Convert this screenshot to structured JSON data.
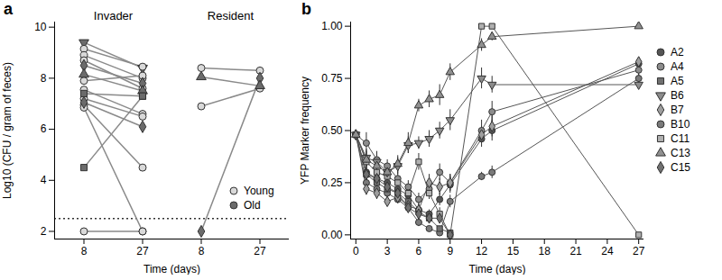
{
  "chart_data": [
    {
      "type": "line",
      "panel": "a",
      "x": [
        8,
        27
      ],
      "xlabel": "Time (days)",
      "ylabel": "Log10 (CFU / gram of feces)",
      "ylim": [
        1.7,
        10.2
      ],
      "yticks": [
        2,
        4,
        6,
        8,
        10
      ],
      "threshold": 2.5,
      "legend": "bottom-right",
      "ages": [
        {
          "name": "Young",
          "color": "#d9d9d9"
        },
        {
          "name": "Old",
          "color": "#6b6b6b"
        }
      ],
      "groups": [
        {
          "name": "Invader",
          "series": [
            {
              "age": "Old",
              "marker": "triangle-down",
              "values": [
                9.4,
                8.4
              ]
            },
            {
              "age": "Young",
              "marker": "circle",
              "values": [
                9.15,
                8.45
              ]
            },
            {
              "age": "Young",
              "marker": "circle",
              "values": [
                8.9,
                8.0
              ]
            },
            {
              "age": "Young",
              "marker": "circle",
              "values": [
                8.7,
                7.6
              ]
            },
            {
              "age": "Old",
              "marker": "diamond",
              "values": [
                8.5,
                7.8
              ]
            },
            {
              "age": "Old",
              "marker": "triangle",
              "values": [
                8.15,
                7.5
              ]
            },
            {
              "age": "Young",
              "marker": "circle",
              "values": [
                7.9,
                8.1
              ]
            },
            {
              "age": "Young",
              "marker": "circle",
              "values": [
                7.55,
                6.6
              ]
            },
            {
              "age": "Old",
              "marker": "square",
              "values": [
                7.4,
                7.3
              ]
            },
            {
              "age": "Young",
              "marker": "circle",
              "values": [
                7.2,
                6.5
              ]
            },
            {
              "age": "Old",
              "marker": "diamond",
              "values": [
                7.05,
                6.1
              ]
            },
            {
              "age": "Young",
              "marker": "circle",
              "values": [
                6.95,
                4.5
              ]
            },
            {
              "age": "Young",
              "marker": "circle",
              "values": [
                6.85,
                2.0
              ]
            },
            {
              "age": "Old",
              "marker": "square",
              "values": [
                4.5,
                7.3
              ]
            },
            {
              "age": "Young",
              "marker": "circle",
              "values": [
                2.0,
                2.0
              ]
            }
          ]
        },
        {
          "name": "Resident",
          "series": [
            {
              "age": "Young",
              "marker": "circle",
              "values": [
                8.4,
                8.3
              ]
            },
            {
              "age": "Old",
              "marker": "triangle",
              "values": [
                8.05,
                7.7
              ]
            },
            {
              "age": "Young",
              "marker": "circle",
              "values": [
                6.9,
                7.6
              ]
            },
            {
              "age": "Old",
              "marker": "diamond",
              "values": [
                2.0,
                8.0
              ]
            }
          ]
        }
      ]
    },
    {
      "type": "line",
      "panel": "b",
      "xlabel": "Time (days)",
      "ylabel": "YFP Marker frequency",
      "x": [
        0,
        1,
        2,
        3,
        4,
        5,
        6,
        7,
        8,
        9,
        12,
        13,
        27
      ],
      "xlim": [
        -0.5,
        27.5
      ],
      "xticks": [
        0,
        3,
        6,
        9,
        12,
        15,
        18,
        21,
        24,
        27
      ],
      "ylim": [
        -0.02,
        1.02
      ],
      "yticks": [
        {
          "value": 0,
          "label": "0.00"
        },
        {
          "value": 0.25,
          "label": "0.25"
        },
        {
          "value": 0.5,
          "label": "0.50"
        },
        {
          "value": 0.75,
          "label": "0.75"
        },
        {
          "value": 1,
          "label": "1.00"
        }
      ],
      "legend": "right",
      "series": [
        {
          "name": "A2",
          "color": "#555555",
          "marker": "circle",
          "values": [
            0.48,
            0.3,
            0.27,
            0.25,
            0.22,
            0.19,
            0.12,
            0.1,
            0.17,
            0.24,
            0.46,
            0.5,
            0.82
          ],
          "errors": [
            0.02,
            0.04,
            0.03,
            0.03,
            0.03,
            0.03,
            0.03,
            0.02,
            0.03,
            0.04,
            0.04,
            0.05,
            0.03
          ]
        },
        {
          "name": "A4",
          "color": "#8c8c8c",
          "marker": "circle",
          "values": [
            0.48,
            0.44,
            0.36,
            0.33,
            0.27,
            0.23,
            0.17,
            0.22,
            0.3,
            0.25,
            0.5,
            0.59,
            0.79
          ],
          "errors": [
            0.02,
            0.05,
            0.04,
            0.03,
            0.03,
            0.03,
            0.03,
            0.03,
            0.04,
            0.04,
            0.05,
            0.05,
            0.03
          ]
        },
        {
          "name": "A5",
          "color": "#707070",
          "marker": "square",
          "values": [
            0.48,
            0.29,
            0.25,
            0.22,
            0.2,
            0.16,
            0.11,
            0.08,
            0.03,
            0.01,
            null,
            null,
            null
          ],
          "errors": [
            0.02,
            0.03,
            0.03,
            0.03,
            0.03,
            0.02,
            0.02,
            0.02,
            0.01,
            0.01,
            null,
            null,
            null
          ]
        },
        {
          "name": "B6",
          "color": "#8c8c8c",
          "marker": "triangle-down",
          "values": [
            0.48,
            0.37,
            0.35,
            0.3,
            0.33,
            0.43,
            0.44,
            0.46,
            0.5,
            0.55,
            0.75,
            0.72,
            0.72
          ],
          "errors": [
            0.02,
            0.04,
            0.03,
            0.03,
            0.04,
            0.04,
            0.03,
            0.04,
            0.04,
            0.05,
            0.05,
            0.04,
            0.02
          ]
        },
        {
          "name": "B7",
          "color": "#9e9e9e",
          "marker": "diamond",
          "values": [
            0.48,
            0.22,
            0.2,
            0.16,
            0.18,
            0.14,
            0.12,
            0.25,
            0.23,
            0.25,
            0.48,
            0.52,
            0.83
          ],
          "errors": [
            0.02,
            0.03,
            0.03,
            0.02,
            0.03,
            0.02,
            0.02,
            0.04,
            0.04,
            0.04,
            0.04,
            0.05,
            0.02
          ]
        },
        {
          "name": "B10",
          "color": "#7a7a7a",
          "marker": "circle",
          "values": [
            0.48,
            0.25,
            0.22,
            0.2,
            0.17,
            0.13,
            0.06,
            0.03,
            0.01,
            0.16,
            0.28,
            0.3,
            0.75
          ],
          "errors": [
            0.02,
            0.03,
            0.03,
            0.03,
            0.02,
            0.02,
            0.02,
            0.01,
            0.01,
            0.03,
            0.02,
            0.03,
            0.02
          ]
        },
        {
          "name": "C11",
          "color": "#b0b0b0",
          "marker": "square",
          "values": [
            0.48,
            0.35,
            0.3,
            0.28,
            0.25,
            0.2,
            0.35,
            0.2,
            0.1,
            0.0,
            1.0,
            1.0,
            0.0
          ],
          "errors": [
            0.02,
            0.04,
            0.03,
            0.03,
            0.03,
            0.03,
            0.04,
            0.03,
            0.03,
            0.01,
            0.0,
            0.0,
            0.0
          ]
        },
        {
          "name": "C13",
          "color": "#909090",
          "marker": "triangle",
          "values": [
            0.48,
            0.36,
            0.33,
            0.3,
            0.34,
            0.44,
            0.62,
            0.65,
            0.67,
            0.78,
            0.91,
            0.95,
            1.0
          ],
          "errors": [
            0.02,
            0.04,
            0.03,
            0.03,
            0.04,
            0.05,
            0.03,
            0.04,
            0.05,
            0.04,
            0.03,
            0.02,
            0.0
          ]
        },
        {
          "name": "C15",
          "color": "#707070",
          "marker": "diamond",
          "values": [
            0.48,
            0.29,
            0.27,
            0.23,
            0.2,
            0.13,
            0.1,
            0.08,
            0.08,
            0.0,
            null,
            null,
            null
          ],
          "errors": [
            0.02,
            0.03,
            0.03,
            0.03,
            0.03,
            0.02,
            0.02,
            0.02,
            0.02,
            0.01,
            null,
            null,
            null
          ]
        }
      ]
    }
  ]
}
